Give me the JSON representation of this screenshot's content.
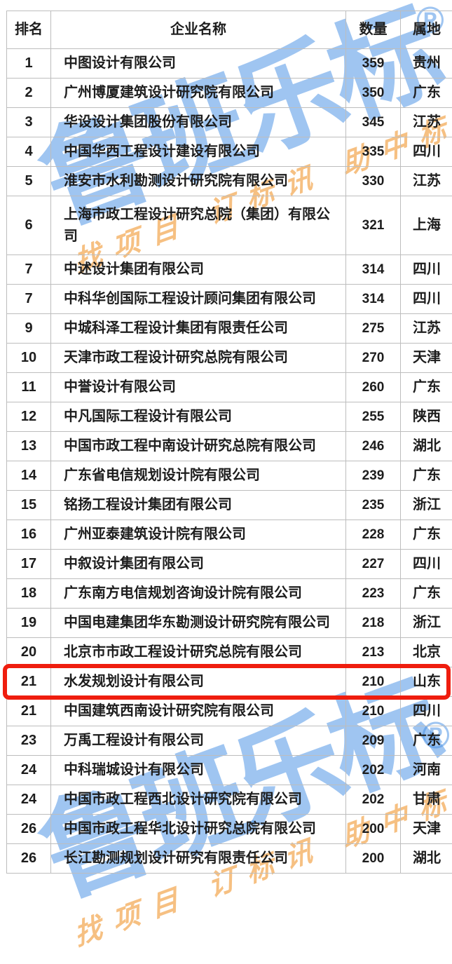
{
  "watermark": {
    "brand": "鲁班乐标",
    "registered": "®",
    "slogan": "找项目 订标讯 助中标",
    "brand_color": "#408ce4",
    "slogan_color": "#f09936"
  },
  "table": {
    "headers": {
      "rank": "排名",
      "company": "企业名称",
      "quantity": "数量",
      "region": "属地"
    },
    "highlight_color": "#ef1d0e",
    "rows": [
      {
        "rank": "1",
        "company": "中图设计有限公司",
        "quantity": "359",
        "region": "贵州"
      },
      {
        "rank": "2",
        "company": "广州博厦建筑设计研究院有限公司",
        "quantity": "350",
        "region": "广东"
      },
      {
        "rank": "3",
        "company": "华设设计集团股份有限公司",
        "quantity": "345",
        "region": "江苏"
      },
      {
        "rank": "4",
        "company": "中国华西工程设计建设有限公司",
        "quantity": "335",
        "region": "四川"
      },
      {
        "rank": "5",
        "company": "淮安市水利勘测设计研究院有限公司",
        "quantity": "330",
        "region": "江苏"
      },
      {
        "rank": "6",
        "company": "上海市政工程设计研究总院（集团）有限公司",
        "quantity": "321",
        "region": "上海",
        "tall": true
      },
      {
        "rank": "7",
        "company": "中述设计集团有限公司",
        "quantity": "314",
        "region": "四川"
      },
      {
        "rank": "7",
        "company": "中科华创国际工程设计顾问集团有限公司",
        "quantity": "314",
        "region": "四川"
      },
      {
        "rank": "9",
        "company": "中城科泽工程设计集团有限责任公司",
        "quantity": "275",
        "region": "江苏"
      },
      {
        "rank": "10",
        "company": "天津市政工程设计研究总院有限公司",
        "quantity": "270",
        "region": "天津"
      },
      {
        "rank": "11",
        "company": "中誉设计有限公司",
        "quantity": "260",
        "region": "广东"
      },
      {
        "rank": "12",
        "company": "中凡国际工程设计有限公司",
        "quantity": "255",
        "region": "陕西"
      },
      {
        "rank": "13",
        "company": "中国市政工程中南设计研究总院有限公司",
        "quantity": "246",
        "region": "湖北"
      },
      {
        "rank": "14",
        "company": "广东省电信规划设计院有限公司",
        "quantity": "239",
        "region": "广东"
      },
      {
        "rank": "15",
        "company": "铭扬工程设计集团有限公司",
        "quantity": "235",
        "region": "浙江"
      },
      {
        "rank": "16",
        "company": "广州亚泰建筑设计院有限公司",
        "quantity": "228",
        "region": "广东"
      },
      {
        "rank": "17",
        "company": "中叙设计集团有限公司",
        "quantity": "227",
        "region": "四川"
      },
      {
        "rank": "18",
        "company": "广东南方电信规划咨询设计院有限公司",
        "quantity": "223",
        "region": "广东"
      },
      {
        "rank": "19",
        "company": "中国电建集团华东勘测设计研究院有限公司",
        "quantity": "218",
        "region": "浙江"
      },
      {
        "rank": "20",
        "company": "北京市市政工程设计研究总院有限公司",
        "quantity": "213",
        "region": "北京"
      },
      {
        "rank": "21",
        "company": "水发规划设计有限公司",
        "quantity": "210",
        "region": "山东",
        "highlighted": true
      },
      {
        "rank": "21",
        "company": "中国建筑西南设计研究院有限公司",
        "quantity": "210",
        "region": "四川"
      },
      {
        "rank": "23",
        "company": "万禹工程设计有限公司",
        "quantity": "209",
        "region": "广东"
      },
      {
        "rank": "24",
        "company": "中科瑞城设计有限公司",
        "quantity": "202",
        "region": "河南"
      },
      {
        "rank": "24",
        "company": "中国市政工程西北设计研究院有限公司",
        "quantity": "202",
        "region": "甘肃"
      },
      {
        "rank": "26",
        "company": "中国市政工程华北设计研究总院有限公司",
        "quantity": "200",
        "region": "天津"
      },
      {
        "rank": "26",
        "company": "长江勘测规划设计研究有限责任公司",
        "quantity": "200",
        "region": "湖北"
      }
    ]
  }
}
